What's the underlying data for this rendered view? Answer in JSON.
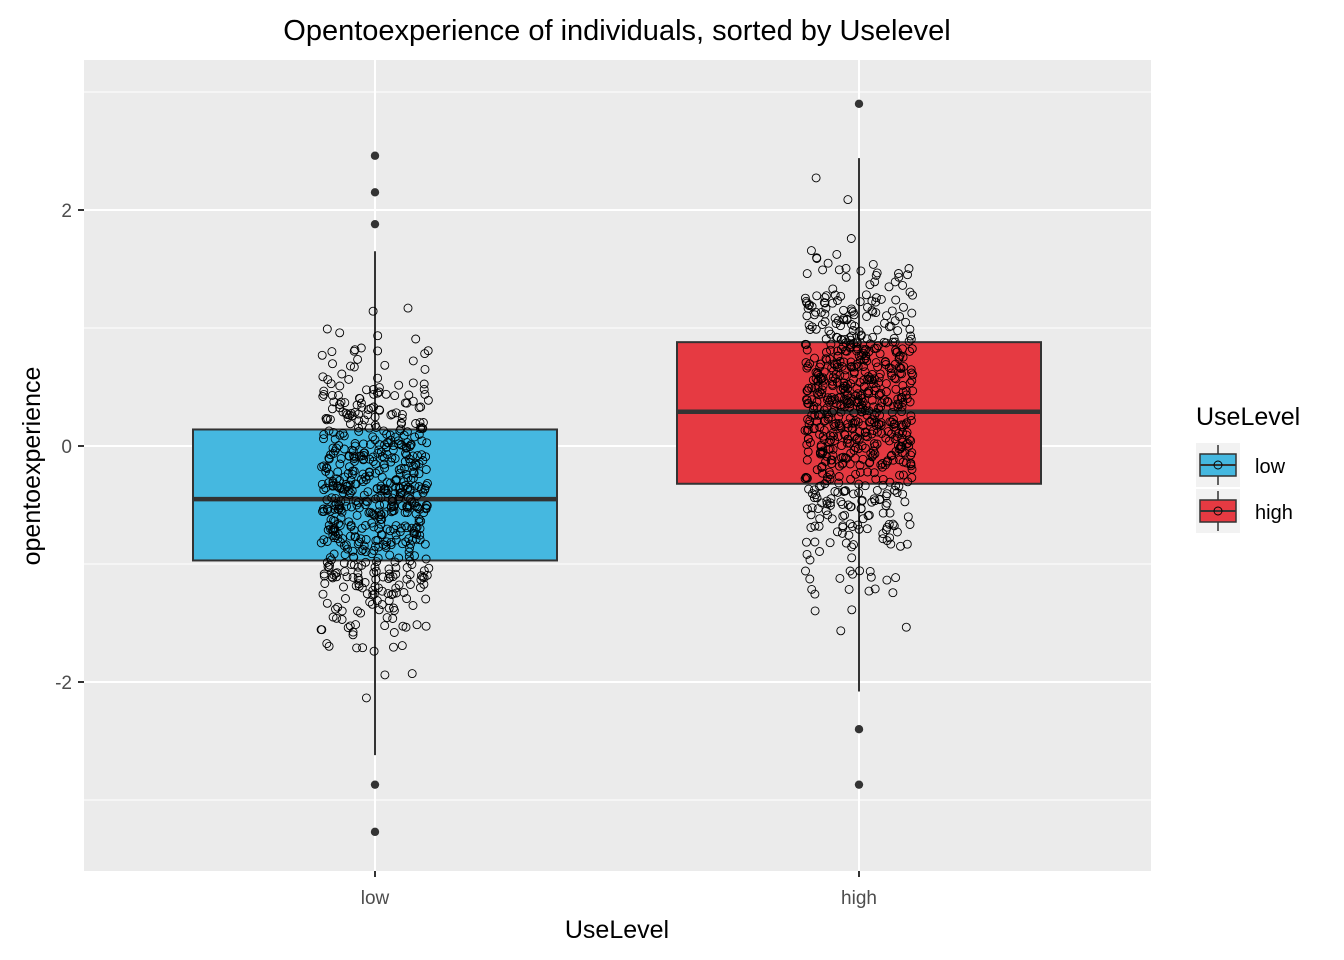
{
  "chart_data": {
    "type": "box",
    "title": "Opentoexperience of individuals, sorted by Uselevel",
    "xlabel": "UseLevel",
    "ylabel": "opentoexperience",
    "categories": [
      "low",
      "high"
    ],
    "y_ticks": [
      -2,
      0,
      2
    ],
    "ylim": [
      -3.6,
      3.0
    ],
    "grid": true,
    "legend": {
      "title": "UseLevel",
      "position": "right",
      "entries": [
        {
          "label": "low",
          "color": "#45B8E0"
        },
        {
          "label": "high",
          "color": "#E63A42"
        }
      ]
    },
    "boxes": [
      {
        "category": "low",
        "color": "#45B8E0",
        "q1": -0.97,
        "median": -0.45,
        "q3": 0.14,
        "whisker_low": -2.62,
        "whisker_high": 1.65,
        "outliers": [
          2.46,
          2.15,
          1.88,
          -2.87,
          -3.27
        ]
      },
      {
        "category": "high",
        "color": "#E63A42",
        "q1": -0.32,
        "median": 0.29,
        "q3": 0.88,
        "whisker_low": -2.08,
        "whisker_high": 2.44,
        "outliers": [
          2.9,
          -2.4,
          -2.87
        ]
      }
    ]
  }
}
